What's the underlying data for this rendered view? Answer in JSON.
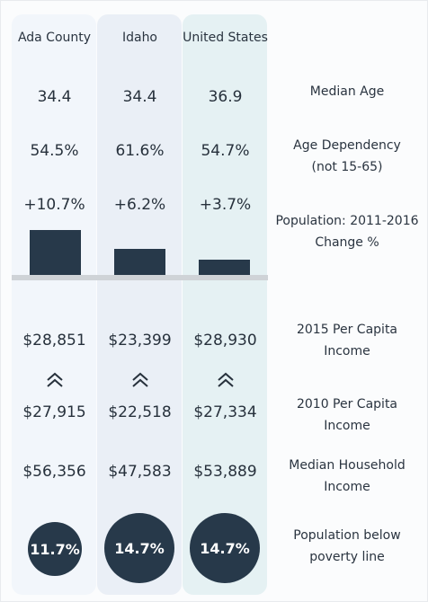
{
  "columns": [
    "Ada County",
    "Idaho",
    "United States"
  ],
  "median_age": {
    "label": "Median Age",
    "values": [
      "34.4",
      "34.4",
      "36.9"
    ]
  },
  "age_dependency": {
    "label_line1": "Age Dependency",
    "label_line2": "(not 15-65)",
    "values": [
      "54.5%",
      "61.6%",
      "54.7%"
    ]
  },
  "population_change": {
    "label_line1": "Population: 2011-2016",
    "label_line2": "Change %",
    "values": [
      "+10.7%",
      "+6.2%",
      "+3.7%"
    ],
    "numeric": [
      10.7,
      6.2,
      3.7
    ]
  },
  "income_2015": {
    "label_line1": "2015 Per Capita",
    "label_line2": "Income",
    "values": [
      "$28,851",
      "$23,399",
      "$28,930"
    ]
  },
  "trend_icon": "double-chevron-up-icon",
  "income_2010": {
    "label_line1": "2010 Per Capita",
    "label_line2": "Income",
    "values": [
      "$27,915",
      "$22,518",
      "$27,334"
    ]
  },
  "household_income": {
    "label_line1": "Median Household",
    "label_line2": "Income",
    "values": [
      "$56,356",
      "$47,583",
      "$53,889"
    ]
  },
  "poverty": {
    "label_line1": "Population below",
    "label_line2": "poverty line",
    "values": [
      "11.7%",
      "14.7%",
      "14.7%"
    ]
  },
  "colors": {
    "bar": "#27394a",
    "divider": "#cfd3d7"
  }
}
